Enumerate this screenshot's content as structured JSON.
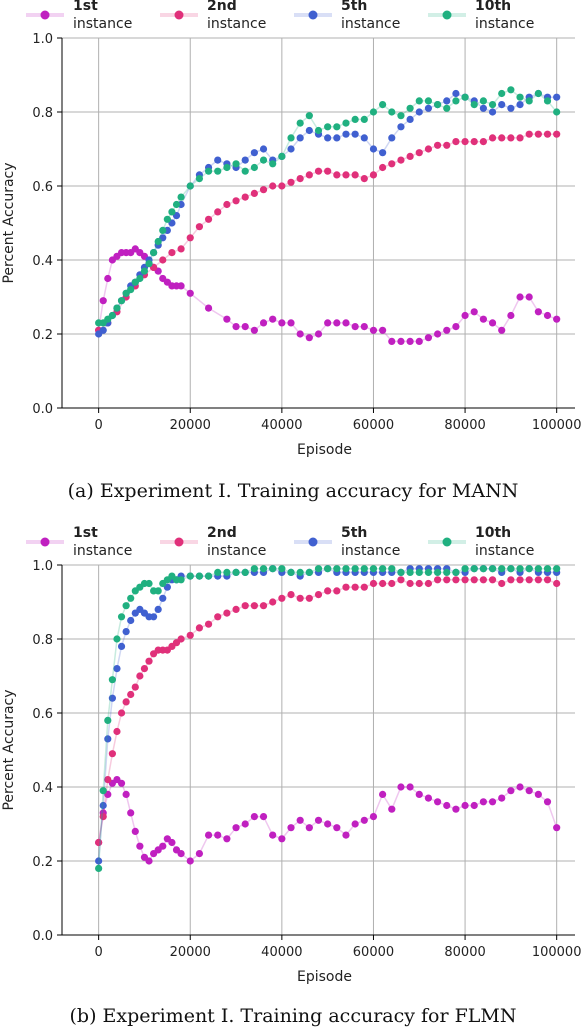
{
  "chart_data": [
    {
      "type": "line",
      "caption": "(a) Experiment I. Training accuracy for MANN",
      "xlabel": "Episode",
      "ylabel": "Percent Accuracy",
      "xlim": [
        -8000,
        104000
      ],
      "ylim": [
        0.0,
        1.0
      ],
      "xticks": [
        0,
        20000,
        40000,
        60000,
        80000,
        100000
      ],
      "yticks": [
        0.0,
        0.2,
        0.4,
        0.6,
        0.8,
        1.0
      ],
      "grid": true,
      "legend_position": "top",
      "series": [
        {
          "name_line1": "1st",
          "name_line2": "instance",
          "color": "#c020c0",
          "x": [
            0,
            1000,
            2000,
            3000,
            4000,
            5000,
            6000,
            7000,
            8000,
            9000,
            10000,
            11000,
            12000,
            13000,
            14000,
            15000,
            16000,
            17000,
            18000,
            20000,
            24000,
            28000,
            30000,
            32000,
            34000,
            36000,
            38000,
            40000,
            42000,
            44000,
            46000,
            48000,
            50000,
            52000,
            54000,
            56000,
            58000,
            60000,
            62000,
            64000,
            66000,
            68000,
            70000,
            72000,
            74000,
            76000,
            78000,
            80000,
            82000,
            84000,
            86000,
            88000,
            90000,
            92000,
            94000,
            96000,
            98000,
            100000
          ],
          "y": [
            0.21,
            0.29,
            0.35,
            0.4,
            0.41,
            0.42,
            0.42,
            0.42,
            0.43,
            0.42,
            0.41,
            0.39,
            0.38,
            0.37,
            0.35,
            0.34,
            0.33,
            0.33,
            0.33,
            0.31,
            0.27,
            0.24,
            0.22,
            0.22,
            0.21,
            0.23,
            0.24,
            0.23,
            0.23,
            0.2,
            0.19,
            0.2,
            0.23,
            0.23,
            0.23,
            0.22,
            0.22,
            0.21,
            0.21,
            0.18,
            0.18,
            0.18,
            0.18,
            0.19,
            0.2,
            0.21,
            0.22,
            0.25,
            0.26,
            0.24,
            0.23,
            0.21,
            0.25,
            0.3,
            0.3,
            0.26,
            0.25,
            0.24
          ]
        },
        {
          "name_line1": "2nd",
          "name_line2": "instance",
          "color": "#e0307a",
          "x": [
            0,
            2000,
            4000,
            6000,
            8000,
            10000,
            12000,
            14000,
            16000,
            18000,
            20000,
            22000,
            24000,
            26000,
            28000,
            30000,
            32000,
            34000,
            36000,
            38000,
            40000,
            42000,
            44000,
            46000,
            48000,
            50000,
            52000,
            54000,
            56000,
            58000,
            60000,
            62000,
            64000,
            66000,
            68000,
            70000,
            72000,
            74000,
            76000,
            78000,
            80000,
            82000,
            84000,
            86000,
            88000,
            90000,
            92000,
            94000,
            96000,
            98000,
            100000
          ],
          "y": [
            0.21,
            0.23,
            0.26,
            0.3,
            0.33,
            0.36,
            0.38,
            0.4,
            0.42,
            0.43,
            0.46,
            0.49,
            0.51,
            0.53,
            0.55,
            0.56,
            0.57,
            0.58,
            0.59,
            0.6,
            0.6,
            0.61,
            0.62,
            0.63,
            0.64,
            0.64,
            0.63,
            0.63,
            0.63,
            0.62,
            0.63,
            0.65,
            0.66,
            0.67,
            0.68,
            0.69,
            0.7,
            0.71,
            0.71,
            0.72,
            0.72,
            0.72,
            0.72,
            0.73,
            0.73,
            0.73,
            0.73,
            0.74,
            0.74,
            0.74,
            0.74
          ]
        },
        {
          "name_line1": "5th",
          "name_line2": "instance",
          "color": "#4060d0",
          "x": [
            0,
            1000,
            2000,
            3000,
            4000,
            5000,
            6000,
            7000,
            8000,
            9000,
            10000,
            11000,
            12000,
            13000,
            14000,
            15000,
            16000,
            17000,
            18000,
            20000,
            22000,
            24000,
            26000,
            28000,
            30000,
            32000,
            34000,
            36000,
            38000,
            40000,
            42000,
            44000,
            46000,
            48000,
            50000,
            52000,
            54000,
            56000,
            58000,
            60000,
            62000,
            64000,
            66000,
            68000,
            70000,
            72000,
            74000,
            76000,
            78000,
            80000,
            82000,
            84000,
            86000,
            88000,
            90000,
            92000,
            94000,
            96000,
            98000,
            100000
          ],
          "y": [
            0.2,
            0.21,
            0.23,
            0.25,
            0.27,
            0.29,
            0.31,
            0.33,
            0.34,
            0.36,
            0.38,
            0.4,
            0.42,
            0.44,
            0.46,
            0.48,
            0.5,
            0.52,
            0.55,
            0.6,
            0.63,
            0.65,
            0.67,
            0.66,
            0.65,
            0.67,
            0.69,
            0.7,
            0.67,
            0.68,
            0.7,
            0.73,
            0.75,
            0.74,
            0.73,
            0.73,
            0.74,
            0.74,
            0.73,
            0.7,
            0.69,
            0.73,
            0.76,
            0.78,
            0.8,
            0.81,
            0.82,
            0.83,
            0.85,
            0.84,
            0.83,
            0.81,
            0.8,
            0.82,
            0.81,
            0.82,
            0.84,
            0.85,
            0.84,
            0.84
          ]
        },
        {
          "name_line1": "10th",
          "name_line2": "instance",
          "color": "#20b080",
          "x": [
            0,
            1000,
            2000,
            3000,
            4000,
            5000,
            6000,
            7000,
            8000,
            9000,
            10000,
            11000,
            12000,
            13000,
            14000,
            15000,
            16000,
            17000,
            18000,
            20000,
            22000,
            24000,
            26000,
            28000,
            30000,
            32000,
            34000,
            36000,
            38000,
            40000,
            42000,
            44000,
            46000,
            48000,
            50000,
            52000,
            54000,
            56000,
            58000,
            60000,
            62000,
            64000,
            66000,
            68000,
            70000,
            72000,
            74000,
            76000,
            78000,
            80000,
            82000,
            84000,
            86000,
            88000,
            90000,
            92000,
            94000,
            96000,
            98000,
            100000
          ],
          "y": [
            0.23,
            0.23,
            0.24,
            0.25,
            0.27,
            0.29,
            0.31,
            0.32,
            0.34,
            0.35,
            0.37,
            0.39,
            0.42,
            0.45,
            0.48,
            0.51,
            0.53,
            0.55,
            0.57,
            0.6,
            0.62,
            0.64,
            0.64,
            0.65,
            0.66,
            0.64,
            0.65,
            0.67,
            0.66,
            0.68,
            0.73,
            0.77,
            0.79,
            0.75,
            0.76,
            0.76,
            0.77,
            0.78,
            0.78,
            0.8,
            0.82,
            0.8,
            0.79,
            0.81,
            0.83,
            0.83,
            0.82,
            0.81,
            0.83,
            0.84,
            0.82,
            0.83,
            0.82,
            0.85,
            0.86,
            0.84,
            0.83,
            0.85,
            0.83,
            0.8
          ]
        }
      ]
    },
    {
      "type": "line",
      "caption": "(b) Experiment I. Training accuracy for FLMN",
      "xlabel": "Episode",
      "ylabel": "Percent Accuracy",
      "xlim": [
        -8000,
        104000
      ],
      "ylim": [
        0.0,
        1.0
      ],
      "xticks": [
        0,
        20000,
        40000,
        60000,
        80000,
        100000
      ],
      "yticks": [
        0.0,
        0.2,
        0.4,
        0.6,
        0.8,
        1.0
      ],
      "grid": true,
      "legend_position": "top",
      "series": [
        {
          "name_line1": "1st",
          "name_line2": "instance",
          "color": "#c020c0",
          "x": [
            0,
            1000,
            2000,
            3000,
            4000,
            5000,
            6000,
            7000,
            8000,
            9000,
            10000,
            11000,
            12000,
            13000,
            14000,
            15000,
            16000,
            17000,
            18000,
            20000,
            22000,
            24000,
            26000,
            28000,
            30000,
            32000,
            34000,
            36000,
            38000,
            40000,
            42000,
            44000,
            46000,
            48000,
            50000,
            52000,
            54000,
            56000,
            58000,
            60000,
            62000,
            64000,
            66000,
            68000,
            70000,
            72000,
            74000,
            76000,
            78000,
            80000,
            82000,
            84000,
            86000,
            88000,
            90000,
            92000,
            94000,
            96000,
            98000,
            100000
          ],
          "y": [
            0.25,
            0.33,
            0.38,
            0.41,
            0.42,
            0.41,
            0.38,
            0.33,
            0.28,
            0.24,
            0.21,
            0.2,
            0.22,
            0.23,
            0.24,
            0.26,
            0.25,
            0.23,
            0.22,
            0.2,
            0.22,
            0.27,
            0.27,
            0.26,
            0.29,
            0.3,
            0.32,
            0.32,
            0.27,
            0.26,
            0.29,
            0.31,
            0.29,
            0.31,
            0.3,
            0.29,
            0.27,
            0.3,
            0.31,
            0.32,
            0.38,
            0.34,
            0.4,
            0.4,
            0.38,
            0.37,
            0.36,
            0.35,
            0.34,
            0.35,
            0.35,
            0.36,
            0.36,
            0.37,
            0.39,
            0.4,
            0.39,
            0.38,
            0.36,
            0.29
          ]
        },
        {
          "name_line1": "2nd",
          "name_line2": "instance",
          "color": "#e0307a",
          "x": [
            0,
            1000,
            2000,
            3000,
            4000,
            5000,
            6000,
            7000,
            8000,
            9000,
            10000,
            11000,
            12000,
            13000,
            14000,
            15000,
            16000,
            17000,
            18000,
            20000,
            22000,
            24000,
            26000,
            28000,
            30000,
            32000,
            34000,
            36000,
            38000,
            40000,
            42000,
            44000,
            46000,
            48000,
            50000,
            52000,
            54000,
            56000,
            58000,
            60000,
            62000,
            64000,
            66000,
            68000,
            70000,
            72000,
            74000,
            76000,
            78000,
            80000,
            82000,
            84000,
            86000,
            88000,
            90000,
            92000,
            94000,
            96000,
            98000,
            100000
          ],
          "y": [
            0.25,
            0.32,
            0.42,
            0.49,
            0.55,
            0.6,
            0.63,
            0.65,
            0.67,
            0.7,
            0.72,
            0.74,
            0.76,
            0.77,
            0.77,
            0.77,
            0.78,
            0.79,
            0.8,
            0.81,
            0.83,
            0.84,
            0.86,
            0.87,
            0.88,
            0.89,
            0.89,
            0.89,
            0.9,
            0.91,
            0.92,
            0.91,
            0.91,
            0.92,
            0.93,
            0.93,
            0.94,
            0.94,
            0.94,
            0.95,
            0.95,
            0.95,
            0.96,
            0.95,
            0.95,
            0.95,
            0.96,
            0.96,
            0.96,
            0.96,
            0.96,
            0.96,
            0.96,
            0.95,
            0.96,
            0.96,
            0.96,
            0.96,
            0.96,
            0.95
          ]
        },
        {
          "name_line1": "5th",
          "name_line2": "instance",
          "color": "#4060d0",
          "x": [
            0,
            1000,
            2000,
            3000,
            4000,
            5000,
            6000,
            7000,
            8000,
            9000,
            10000,
            11000,
            12000,
            13000,
            14000,
            15000,
            16000,
            17000,
            18000,
            20000,
            22000,
            24000,
            26000,
            28000,
            30000,
            32000,
            34000,
            36000,
            38000,
            40000,
            42000,
            44000,
            46000,
            48000,
            50000,
            52000,
            54000,
            56000,
            58000,
            60000,
            62000,
            64000,
            66000,
            68000,
            70000,
            72000,
            74000,
            76000,
            78000,
            80000,
            82000,
            84000,
            86000,
            88000,
            90000,
            92000,
            94000,
            96000,
            98000,
            100000
          ],
          "y": [
            0.2,
            0.35,
            0.53,
            0.64,
            0.72,
            0.78,
            0.82,
            0.85,
            0.87,
            0.88,
            0.87,
            0.86,
            0.86,
            0.88,
            0.91,
            0.94,
            0.96,
            0.96,
            0.97,
            0.97,
            0.97,
            0.97,
            0.97,
            0.97,
            0.98,
            0.98,
            0.98,
            0.98,
            0.99,
            0.98,
            0.98,
            0.97,
            0.98,
            0.98,
            0.99,
            0.98,
            0.98,
            0.98,
            0.98,
            0.98,
            0.98,
            0.98,
            0.98,
            0.99,
            0.99,
            0.99,
            0.99,
            0.99,
            0.98,
            0.98,
            0.99,
            0.99,
            0.99,
            0.98,
            0.99,
            0.98,
            0.99,
            0.98,
            0.98,
            0.98
          ]
        },
        {
          "name_line1": "10th",
          "name_line2": "instance",
          "color": "#20b080",
          "x": [
            0,
            1000,
            2000,
            3000,
            4000,
            5000,
            6000,
            7000,
            8000,
            9000,
            10000,
            11000,
            12000,
            13000,
            14000,
            15000,
            16000,
            17000,
            18000,
            20000,
            22000,
            24000,
            26000,
            28000,
            30000,
            32000,
            34000,
            36000,
            38000,
            40000,
            42000,
            44000,
            46000,
            48000,
            50000,
            52000,
            54000,
            56000,
            58000,
            60000,
            62000,
            64000,
            66000,
            68000,
            70000,
            72000,
            74000,
            76000,
            78000,
            80000,
            82000,
            84000,
            86000,
            88000,
            90000,
            92000,
            94000,
            96000,
            98000,
            100000
          ],
          "y": [
            0.18,
            0.39,
            0.58,
            0.69,
            0.8,
            0.86,
            0.89,
            0.91,
            0.93,
            0.94,
            0.95,
            0.95,
            0.93,
            0.93,
            0.95,
            0.96,
            0.97,
            0.96,
            0.96,
            0.97,
            0.97,
            0.97,
            0.98,
            0.98,
            0.98,
            0.98,
            0.99,
            0.99,
            0.99,
            0.99,
            0.98,
            0.98,
            0.98,
            0.99,
            0.99,
            0.99,
            0.99,
            0.99,
            0.99,
            0.99,
            0.99,
            0.99,
            0.98,
            0.98,
            0.98,
            0.98,
            0.98,
            0.98,
            0.98,
            0.99,
            0.99,
            0.99,
            0.99,
            0.99,
            0.99,
            0.99,
            0.99,
            0.99,
            0.99,
            0.99
          ]
        }
      ]
    }
  ]
}
